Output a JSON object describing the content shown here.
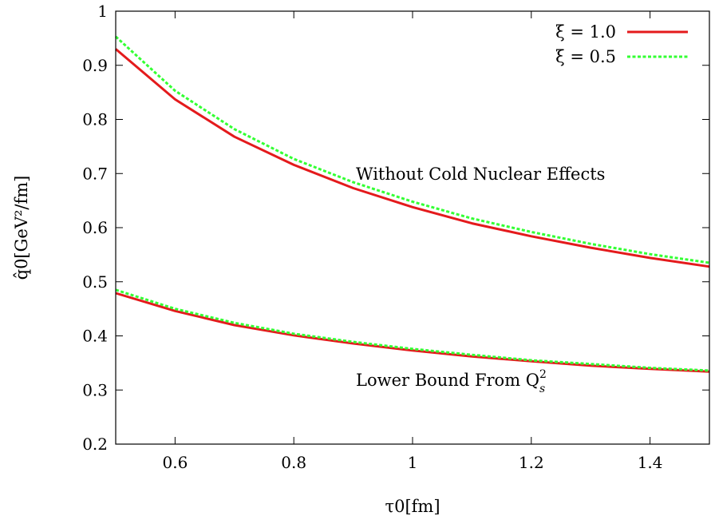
{
  "chart_data": {
    "type": "line",
    "xlabel": "τ0[fm]",
    "ylabel": "q̂0[GeV²/fm]",
    "xlim": [
      0.5,
      1.5
    ],
    "ylim": [
      0.2,
      1.0
    ],
    "x_ticks": [
      "0.6",
      "0.8",
      "1",
      "1.2",
      "1.4"
    ],
    "y_ticks": [
      "0.2",
      "0.3",
      "0.4",
      "0.5",
      "0.6",
      "0.7",
      "0.8",
      "0.9",
      "1"
    ],
    "legend_position": "top-right",
    "annotations": {
      "upper": "Without Cold Nuclear Effects",
      "lower": "Lower Bound From Q",
      "lower_sup": "2",
      "lower_sub": "s"
    },
    "series": [
      {
        "name": "ξ = 1.0",
        "color": "#e41a1c",
        "style": "solid",
        "x": [
          0.5,
          0.6,
          0.7,
          0.8,
          0.9,
          1.0,
          1.1,
          1.2,
          1.3,
          1.4,
          1.5
        ],
        "values": [
          0.93,
          0.837,
          0.768,
          0.716,
          0.673,
          0.638,
          0.608,
          0.584,
          0.563,
          0.544,
          0.528
        ]
      },
      {
        "name": "ξ = 0.5",
        "color": "#33ff33",
        "style": "dashed",
        "x": [
          0.5,
          0.6,
          0.7,
          0.8,
          0.9,
          1.0,
          1.1,
          1.2,
          1.3,
          1.4,
          1.5
        ],
        "values": [
          0.953,
          0.853,
          0.782,
          0.727,
          0.684,
          0.648,
          0.617,
          0.592,
          0.57,
          0.551,
          0.535
        ]
      },
      {
        "name": "",
        "color": "#e41a1c",
        "style": "solid",
        "x": [
          0.5,
          0.6,
          0.7,
          0.8,
          0.9,
          1.0,
          1.1,
          1.2,
          1.3,
          1.4,
          1.5
        ],
        "values": [
          0.479,
          0.446,
          0.42,
          0.401,
          0.386,
          0.373,
          0.362,
          0.353,
          0.345,
          0.339,
          0.334
        ]
      },
      {
        "name": "",
        "color": "#33ff33",
        "style": "dashed",
        "x": [
          0.5,
          0.6,
          0.7,
          0.8,
          0.9,
          1.0,
          1.1,
          1.2,
          1.3,
          1.4,
          1.5
        ],
        "values": [
          0.485,
          0.45,
          0.424,
          0.404,
          0.389,
          0.376,
          0.365,
          0.355,
          0.348,
          0.341,
          0.336
        ]
      }
    ]
  }
}
